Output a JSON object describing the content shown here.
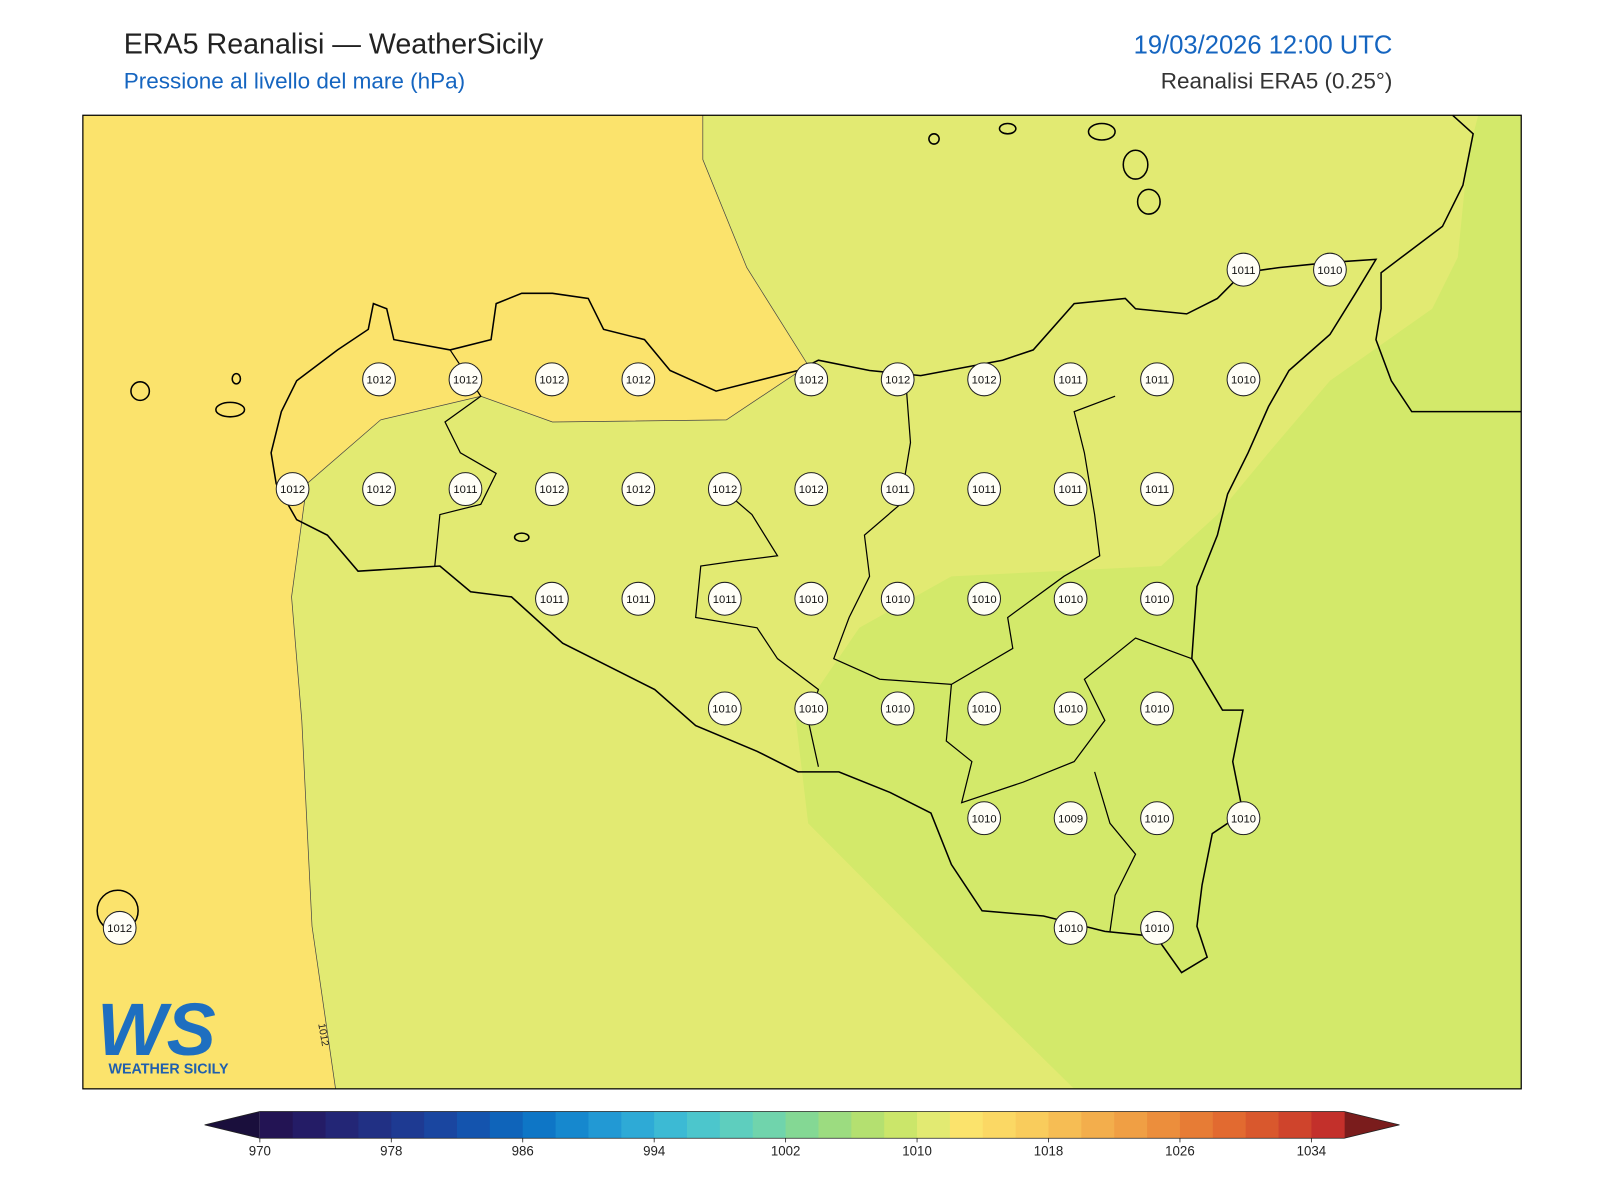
{
  "header": {
    "title": "ERA5 Reanalisi — WeatherSicily",
    "subtitle": "Pressione al livello del mare (hPa)",
    "datetime": "19/03/2026 12:00 UTC",
    "source": "Reanalisi ERA5 (0.25°)"
  },
  "map": {
    "contour_label": 1012,
    "stations": [
      [
        null,
        null,
        null,
        null,
        null,
        null,
        null,
        null,
        null,
        null,
        null,
        null,
        null,
        1011,
        1010
      ],
      [
        null,
        null,
        null,
        1012,
        1012,
        1012,
        1012,
        null,
        1012,
        1012,
        1012,
        1011,
        1011,
        1010,
        null
      ],
      [
        null,
        null,
        1012,
        1012,
        1011,
        1012,
        1012,
        1012,
        1012,
        1011,
        1011,
        1011,
        1011,
        null,
        null
      ],
      [
        null,
        null,
        null,
        null,
        null,
        1011,
        1011,
        1011,
        1010,
        1010,
        1010,
        1010,
        1010,
        null,
        null
      ],
      [
        null,
        null,
        null,
        null,
        null,
        null,
        null,
        1010,
        1010,
        1010,
        1010,
        1010,
        1010,
        null,
        null
      ],
      [
        null,
        null,
        null,
        null,
        null,
        null,
        null,
        null,
        null,
        null,
        1010,
        1009,
        1010,
        1010,
        null
      ],
      [
        1012,
        null,
        null,
        null,
        null,
        null,
        null,
        null,
        null,
        null,
        null,
        1010,
        1010,
        null,
        null
      ]
    ]
  },
  "colorbar": {
    "levels": [
      970,
      972,
      974,
      976,
      978,
      980,
      982,
      984,
      986,
      988,
      990,
      992,
      994,
      996,
      998,
      1000,
      1002,
      1004,
      1006,
      1008,
      1010,
      1012,
      1014,
      1016,
      1018,
      1020,
      1022,
      1024,
      1026,
      1028,
      1030,
      1032,
      1034,
      1036
    ],
    "colors": [
      "#231454",
      "#241c66",
      "#232676",
      "#213084",
      "#1e3a92",
      "#1a46a0",
      "#1454ae",
      "#0f64ba",
      "#0e76c6",
      "#1688ce",
      "#2299d4",
      "#2eaad6",
      "#3cbad4",
      "#4cc6cc",
      "#5ecebe",
      "#70d4ac",
      "#84d894",
      "#9cdc80",
      "#b4e070",
      "#cbe66a",
      "#e2ea72",
      "#fbe36c",
      "#fbd864",
      "#f9cc5c",
      "#f6bd54",
      "#f3ae4c",
      "#f09f44",
      "#ec8e3c",
      "#e77c35",
      "#e26a30",
      "#d9582d",
      "#cf442c",
      "#c3302b"
    ],
    "under_color": "#1a0f3c",
    "over_color": "#7a1c1c",
    "ticks": [
      970,
      978,
      986,
      994,
      1002,
      1010,
      1018,
      1026,
      1034
    ]
  },
  "logo": {
    "mark": "WS",
    "text": "WEATHER SICILY"
  }
}
